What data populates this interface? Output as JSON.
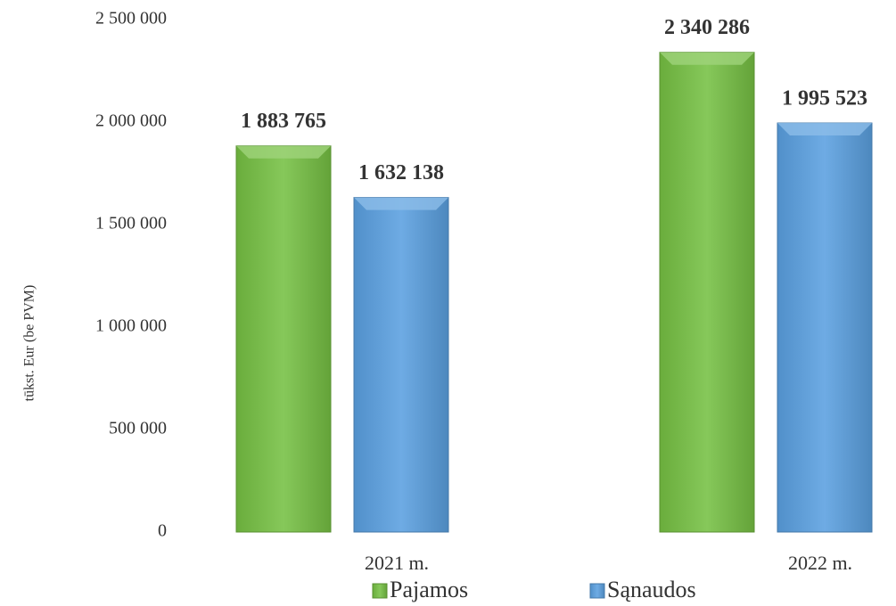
{
  "chart_data": {
    "type": "bar",
    "y_axis_label": "tūkst. Eur (be PVM)",
    "categories": [
      "2021 m.",
      "2022 m."
    ],
    "series": [
      {
        "name": "Pajamos",
        "color": "#76c043",
        "values": [
          1883765,
          2340286
        ],
        "value_labels": [
          "1 883 765",
          "2 340 286"
        ]
      },
      {
        "name": "Sąnaudos",
        "color": "#5aa0e0",
        "values": [
          1632138,
          1995523
        ],
        "value_labels": [
          "1 632 138",
          "1 995 523"
        ]
      }
    ],
    "ylim": [
      0,
      2500000
    ],
    "yticks": [
      0,
      {
        "value": 500000,
        "label": "500 000"
      },
      {
        "value": 1000000,
        "label": "1 000 000"
      },
      {
        "value": 1500000,
        "label": "1 500 000"
      },
      {
        "value": 2000000,
        "label": "2 000 000"
      },
      {
        "value": 2500000,
        "label": "2 500 000"
      }
    ],
    "grid": false,
    "legend": "bottom"
  }
}
